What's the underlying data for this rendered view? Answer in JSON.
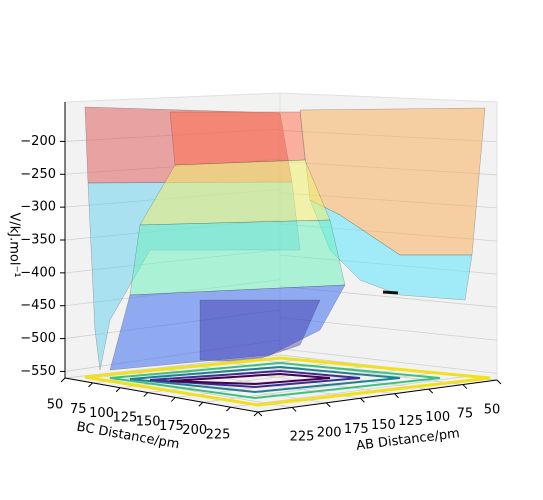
{
  "chart_data": {
    "type": "surface3d",
    "xlabel": "AB Distance/pm",
    "ylabel": "BC Distance/pm",
    "zlabel": "V/kJ.mol⁻¹",
    "xlim": [
      50,
      225
    ],
    "xticks": [
      225,
      200,
      175,
      150,
      125,
      100,
      75,
      50
    ],
    "ylim": [
      50,
      225
    ],
    "yticks": [
      50,
      75,
      100,
      125,
      150,
      175,
      200,
      225
    ],
    "zlim": [
      -560,
      -140
    ],
    "zticks": [
      {
        "value": -200,
        "label": "−200"
      },
      {
        "value": -250,
        "label": "−250"
      },
      {
        "value": -300,
        "label": "−300"
      },
      {
        "value": -350,
        "label": "−350"
      },
      {
        "value": -400,
        "label": "−400"
      },
      {
        "value": -450,
        "label": "−450"
      },
      {
        "value": -500,
        "label": "−500"
      },
      {
        "value": -550,
        "label": "−550"
      }
    ],
    "grid": true
  }
}
